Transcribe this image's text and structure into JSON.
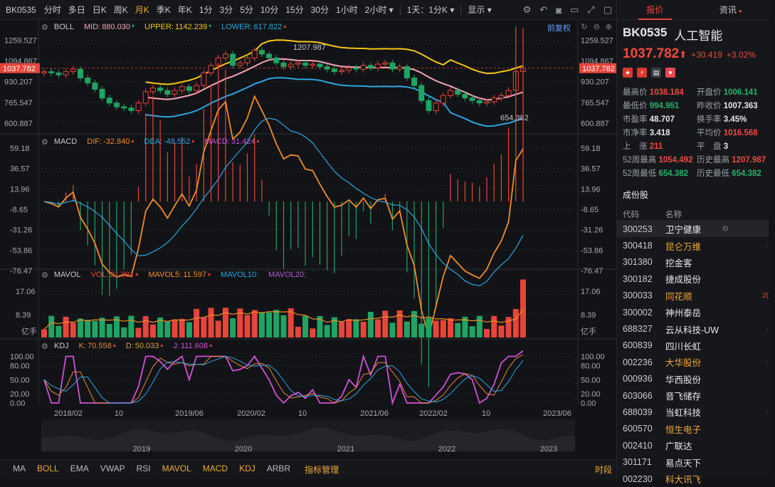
{
  "toolbar": {
    "code": "BK0535",
    "periods": [
      "分时",
      "多日",
      "日K",
      "周K",
      "月K",
      "季K",
      "年K",
      "1分",
      "3分",
      "5分",
      "10分",
      "15分",
      "30分",
      "1小时",
      "2小时 ▾"
    ],
    "active_period": "月K",
    "mode": "1天：1分K ▾",
    "display": "显示 ▾"
  },
  "boll": {
    "name": "BOLL",
    "mid_label": "MID:",
    "mid": "880.030",
    "upper_label": "UPPER:",
    "upper": "1142.239",
    "lower_label": "LOWER:",
    "lower": "617.822",
    "adjust": "前复权",
    "y_ticks": [
      "1259.527",
      "1094.867",
      "930.207",
      "765.547",
      "600.887"
    ],
    "current": "1037.782",
    "high_mark": "1207.987",
    "low_mark": "654.382"
  },
  "macd": {
    "name": "MACD",
    "dif_label": "DIF:",
    "dif": "-32.840",
    "dea_label": "DEA:",
    "dea": "-48.552",
    "macd_label": "MACD:",
    "macd": "31.424",
    "y_ticks": [
      "59.18",
      "36.57",
      "13.96",
      "-8.65",
      "-31.26",
      "-53.86",
      "-76.47"
    ]
  },
  "mavol": {
    "name": "MAVOL",
    "vol_label": "VOL:",
    "vol": "21.391",
    "mavol5_label": "MAVOL5:",
    "mavol5": "11.597",
    "mavol10_label": "MAVOL10:",
    "mavol20_label": "MAVOL20:",
    "y_ticks": [
      "17.06",
      "8.39"
    ],
    "unit": "亿手"
  },
  "kdj": {
    "name": "KDJ",
    "k_label": "K:",
    "k": "70.558",
    "d_label": "D:",
    "d": "50.033",
    "j_label": "J:",
    "j": "111.608",
    "y_ticks": [
      "100.00",
      "80.00",
      "50.00",
      "20.00",
      "0.00"
    ]
  },
  "xaxis": {
    "labels": [
      "2018/02",
      "10",
      "2019/06",
      "2020/02",
      "10",
      "2021/06",
      "2022/02",
      "10",
      "2023/06"
    ],
    "overview_labels": [
      "2019",
      "2020",
      "2021",
      "2022",
      "2023"
    ]
  },
  "bottom": {
    "items": [
      "MA",
      "BOLL",
      "EMA",
      "VWAP",
      "RSI",
      "MAVOL",
      "MACD",
      "KDJ",
      "ARBR",
      "指标管理"
    ],
    "on": [
      "BOLL",
      "MAVOL",
      "MACD",
      "KDJ",
      "指标管理"
    ],
    "right": "时段"
  },
  "panel": {
    "tabs": [
      "报价",
      "资讯"
    ],
    "code": "BK0535",
    "name": "人工智能",
    "price": "1037.782",
    "price_arrow": "⬆",
    "change": "+30.419",
    "change_pct": "+3.02%",
    "stats": [
      {
        "k": "最高价",
        "v": "1038.184",
        "c": "r"
      },
      {
        "k": "开盘价",
        "v": "1006.141",
        "c": "g"
      },
      {
        "k": "最低价",
        "v": "994.951",
        "c": "g"
      },
      {
        "k": "昨收价",
        "v": "1007.363",
        "c": ""
      },
      {
        "k": "市盈率",
        "v": "48.707",
        "c": ""
      },
      {
        "k": "换手率",
        "v": "3.45%",
        "c": ""
      },
      {
        "k": "市净率",
        "v": "3.418",
        "c": ""
      },
      {
        "k": "平均价",
        "v": "1016.568",
        "c": "r"
      },
      {
        "k": "上　涨",
        "v": "211",
        "c": "r"
      },
      {
        "k": "平　盘",
        "v": "3",
        "c": ""
      },
      {
        "k": "52周最高",
        "v": "1054.492",
        "c": "r"
      },
      {
        "k": "历史最高",
        "v": "1207.987",
        "c": "r"
      },
      {
        "k": "52周最低",
        "v": "654.382",
        "c": "g"
      },
      {
        "k": "历史最低",
        "v": "654.382",
        "c": "g"
      }
    ],
    "constituents_title": "成份股",
    "col_code": "代码",
    "col_name": "名称",
    "constituents": [
      {
        "code": "300253",
        "name": "卫宁健康",
        "y": false,
        "sel": true
      },
      {
        "code": "300418",
        "name": "昆仑万维",
        "y": true,
        "mark": "·"
      },
      {
        "code": "301380",
        "name": "挖金客",
        "y": false
      },
      {
        "code": "300182",
        "name": "捷成股份",
        "y": false
      },
      {
        "code": "300033",
        "name": "同花顺",
        "y": true,
        "mark": "2("
      },
      {
        "code": "300002",
        "name": "神州泰岳",
        "y": false
      },
      {
        "code": "688327",
        "name": "云从科技-UW",
        "y": false,
        "mark": "·"
      },
      {
        "code": "600839",
        "name": "四川长虹",
        "y": false
      },
      {
        "code": "002236",
        "name": "大华股份",
        "y": true,
        "mark": "·"
      },
      {
        "code": "000936",
        "name": "华西股份",
        "y": false
      },
      {
        "code": "603066",
        "name": "音飞储存",
        "y": false
      },
      {
        "code": "688039",
        "name": "当虹科技",
        "y": false,
        "mark": "·"
      },
      {
        "code": "600570",
        "name": "恒生电子",
        "y": true
      },
      {
        "code": "002410",
        "name": "广联达",
        "y": false
      },
      {
        "code": "301171",
        "name": "易点天下",
        "y": false
      },
      {
        "code": "002230",
        "name": "科大讯飞",
        "y": true
      }
    ]
  },
  "colors": {
    "up": "#e7453a",
    "down": "#1fa463",
    "upper": "#f5c518",
    "mid": "#f2a7b8",
    "lower": "#2ba6e0",
    "dif": "#f28c28",
    "dea": "#2ba6e0",
    "kline": "#e5893a",
    "dline": "#d9a441",
    "jline": "#d24fd6"
  },
  "chart_data": {
    "type": "line",
    "candles_close": [
      1010,
      1000,
      985,
      1010,
      1030,
      960,
      920,
      870,
      800,
      760,
      730,
      720,
      700,
      760,
      850,
      880,
      860,
      830,
      860,
      890,
      860,
      900,
      1000,
      1060,
      1120,
      1150,
      1060,
      1080,
      1120,
      1180,
      1150,
      1120,
      1080,
      1050,
      1070,
      1080,
      1060,
      1070,
      1050,
      1030,
      1010,
      1020,
      1040,
      1030,
      1060,
      1040,
      1070,
      1080,
      1030,
      1050,
      960,
      900,
      780,
      700,
      760,
      820,
      860,
      830,
      800,
      780,
      760,
      770,
      800,
      820,
      860,
      1010,
      1040
    ],
    "boll_upper_end": 1142.239,
    "boll_mid_end": 880.03,
    "boll_lower_end": 617.822,
    "macd_end": {
      "dif": -32.84,
      "dea": -48.552,
      "macd": 31.424
    },
    "vol_end": {
      "vol": 21.391,
      "mavol5": 11.597
    },
    "kdj_end": {
      "k": 70.558,
      "d": 50.033,
      "j": 111.608
    }
  }
}
